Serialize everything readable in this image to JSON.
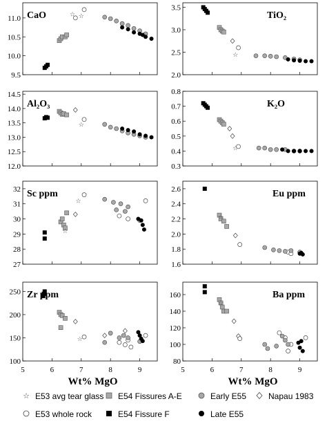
{
  "figure": {
    "xlabel_shared": "Wt% MgO",
    "xticks": [
      "5",
      "6",
      "7",
      "8",
      "9"
    ]
  },
  "legend": [
    {
      "symbol": "star",
      "label": "E53 avg tear glass"
    },
    {
      "symbol": "square-gray",
      "label": "E54 Fissures A-E"
    },
    {
      "symbol": "circle-gray",
      "label": "Early E55"
    },
    {
      "symbol": "diamond-open",
      "label": "Napau 1983"
    },
    {
      "symbol": "circle-open",
      "label": "E53 whole rock"
    },
    {
      "symbol": "square-black",
      "label": "E54 Fissure F"
    },
    {
      "symbol": "circle-black",
      "label": "Late E55"
    }
  ],
  "chart_data": [
    {
      "type": "scatter",
      "title": "CaO",
      "xlim": [
        5,
        9.6
      ],
      "ylim": [
        9.5,
        11.4
      ],
      "yticks": [
        "9.5",
        "10.0",
        "10.5",
        "11.0"
      ],
      "series": [
        {
          "name": "E54 Fissure F",
          "x": [
            5.75,
            5.8,
            5.85
          ],
          "y": [
            9.68,
            9.72,
            9.76
          ]
        },
        {
          "name": "E54 Fissures A-E",
          "x": [
            6.25,
            6.3,
            6.35,
            6.45,
            6.5
          ],
          "y": [
            10.4,
            10.45,
            10.5,
            10.5,
            10.55
          ]
        },
        {
          "name": "E53 avg tear glass",
          "x": [
            6.7,
            7.0
          ],
          "y": [
            11.1,
            11.05
          ]
        },
        {
          "name": "E53 whole rock",
          "x": [
            7.1,
            6.8
          ],
          "y": [
            11.22,
            11.0
          ]
        },
        {
          "name": "Early E55",
          "x": [
            7.8,
            8.0,
            8.2,
            8.4,
            8.6,
            8.8,
            9.0,
            9.2
          ],
          "y": [
            11.02,
            10.98,
            10.92,
            10.85,
            10.8,
            10.72,
            10.66,
            10.58
          ]
        },
        {
          "name": "Late E55",
          "x": [
            8.4,
            8.6,
            8.8,
            9.0,
            9.1,
            9.2,
            9.4
          ],
          "y": [
            10.75,
            10.7,
            10.62,
            10.58,
            10.55,
            10.5,
            10.45
          ]
        }
      ]
    },
    {
      "type": "scatter",
      "title": "TiO₂",
      "xlim": [
        5,
        9.6
      ],
      "ylim": [
        2.0,
        3.6
      ],
      "yticks": [
        "2.0",
        "2.5",
        "3.0",
        "3.5"
      ],
      "series": [
        {
          "name": "E54 Fissure F",
          "x": [
            5.7,
            5.75,
            5.8,
            5.85
          ],
          "y": [
            3.5,
            3.46,
            3.42,
            3.38
          ]
        },
        {
          "name": "E54 Fissures A-E",
          "x": [
            6.25,
            6.3,
            6.35,
            6.4
          ],
          "y": [
            3.05,
            3.0,
            2.97,
            2.95
          ]
        },
        {
          "name": "E53 avg tear glass",
          "x": [
            6.8
          ],
          "y": [
            2.45
          ]
        },
        {
          "name": "E53 whole rock",
          "x": [
            6.9
          ],
          "y": [
            2.6
          ]
        },
        {
          "name": "Napau 1983",
          "x": [
            6.7
          ],
          "y": [
            2.75
          ]
        },
        {
          "name": "Early E55",
          "x": [
            7.5,
            7.8,
            8.0,
            8.2,
            8.5,
            8.8,
            9.0
          ],
          "y": [
            2.42,
            2.42,
            2.41,
            2.4,
            2.38,
            2.35,
            2.33
          ]
        },
        {
          "name": "Late E55",
          "x": [
            8.6,
            8.8,
            9.0,
            9.2,
            9.4
          ],
          "y": [
            2.34,
            2.32,
            2.31,
            2.3,
            2.3
          ]
        }
      ]
    },
    {
      "type": "scatter",
      "title": "Al₂O₃",
      "xlim": [
        5,
        9.6
      ],
      "ylim": [
        12.0,
        14.6
      ],
      "yticks": [
        "12.0",
        "12.5",
        "13.0",
        "13.5",
        "14.0",
        "14.5"
      ],
      "series": [
        {
          "name": "E54 Fissure F",
          "x": [
            5.75,
            5.8,
            5.85
          ],
          "y": [
            13.66,
            13.7,
            13.68
          ]
        },
        {
          "name": "E54 Fissures A-E",
          "x": [
            6.25,
            6.3,
            6.35,
            6.4,
            6.5
          ],
          "y": [
            13.9,
            13.85,
            13.8,
            13.82,
            13.78
          ]
        },
        {
          "name": "E53 avg tear glass",
          "x": [
            7.0
          ],
          "y": [
            13.45
          ]
        },
        {
          "name": "Napau 1983",
          "x": [
            6.8
          ],
          "y": [
            13.95
          ]
        },
        {
          "name": "E53 whole rock",
          "x": [
            7.1
          ],
          "y": [
            13.62
          ]
        },
        {
          "name": "Early E55",
          "x": [
            7.8,
            8.0,
            8.2,
            8.4,
            8.6,
            8.8,
            9.0,
            9.2
          ],
          "y": [
            13.45,
            13.35,
            13.3,
            13.22,
            13.15,
            13.1,
            13.05,
            13.0
          ]
        },
        {
          "name": "Late E55",
          "x": [
            8.4,
            8.6,
            8.8,
            9.0,
            9.2,
            9.4
          ],
          "y": [
            13.3,
            13.25,
            13.2,
            13.1,
            13.05,
            13.0
          ]
        }
      ]
    },
    {
      "type": "scatter",
      "title": "K₂O",
      "xlim": [
        5,
        9.6
      ],
      "ylim": [
        0.3,
        0.8
      ],
      "yticks": [
        "0.3",
        "0.4",
        "0.5",
        "0.6",
        "0.7",
        "0.8"
      ],
      "series": [
        {
          "name": "E54 Fissure F",
          "x": [
            5.7,
            5.75,
            5.8,
            5.85
          ],
          "y": [
            0.72,
            0.71,
            0.7,
            0.69
          ]
        },
        {
          "name": "E54 Fissures A-E",
          "x": [
            6.25,
            6.3,
            6.35,
            6.4
          ],
          "y": [
            0.61,
            0.6,
            0.59,
            0.58
          ]
        },
        {
          "name": "E53 avg tear glass",
          "x": [
            6.8
          ],
          "y": [
            0.42
          ]
        },
        {
          "name": "Napau 1983",
          "x": [
            6.6,
            6.7
          ],
          "y": [
            0.55,
            0.5
          ]
        },
        {
          "name": "E53 whole rock",
          "x": [
            6.9
          ],
          "y": [
            0.43
          ]
        },
        {
          "name": "Early E55",
          "x": [
            7.6,
            7.8,
            8.0,
            8.2,
            8.5,
            8.8,
            9.0
          ],
          "y": [
            0.42,
            0.42,
            0.41,
            0.41,
            0.41,
            0.4,
            0.4
          ]
        },
        {
          "name": "Late E55",
          "x": [
            8.4,
            8.6,
            8.8,
            9.0,
            9.2,
            9.4
          ],
          "y": [
            0.41,
            0.4,
            0.4,
            0.4,
            0.4,
            0.4
          ]
        }
      ]
    },
    {
      "type": "scatter",
      "title": "Sc ppm",
      "xlim": [
        5,
        9.6
      ],
      "ylim": [
        27,
        32.5
      ],
      "yticks": [
        "27",
        "28",
        "29",
        "30",
        "31",
        "32"
      ],
      "series": [
        {
          "name": "E54 Fissure F",
          "x": [
            5.75,
            5.75
          ],
          "y": [
            28.7,
            29.1
          ]
        },
        {
          "name": "E54 Fissures A-E",
          "x": [
            6.3,
            6.35,
            6.4,
            6.45,
            6.5
          ],
          "y": [
            29.8,
            30.0,
            29.6,
            29.4,
            30.4
          ]
        },
        {
          "name": "E53 avg tear glass",
          "x": [
            6.9,
            6.45
          ],
          "y": [
            31.2,
            29.2
          ]
        },
        {
          "name": "Napau 1983",
          "x": [
            6.8
          ],
          "y": [
            30.3
          ]
        },
        {
          "name": "E53 whole rock",
          "x": [
            7.1,
            9.2,
            8.3,
            8.6
          ],
          "y": [
            31.6,
            31.2,
            30.2,
            30.0
          ]
        },
        {
          "name": "Early E55",
          "x": [
            7.8,
            8.1,
            8.2,
            8.35,
            8.5,
            8.6,
            9.0
          ],
          "y": [
            31.3,
            31.1,
            30.6,
            31.0,
            30.5,
            30.8,
            29.9
          ]
        },
        {
          "name": "Late E55",
          "x": [
            8.95,
            9.05,
            9.1,
            9.15
          ],
          "y": [
            30.0,
            29.9,
            29.6,
            29.3
          ]
        }
      ]
    },
    {
      "type": "scatter",
      "title": "Eu ppm",
      "xlim": [
        5,
        9.6
      ],
      "ylim": [
        1.6,
        2.7
      ],
      "yticks": [
        "1.6",
        "1.8",
        "2.0",
        "2.2",
        "2.4",
        "2.6"
      ],
      "series": [
        {
          "name": "E54 Fissure F",
          "x": [
            5.75
          ],
          "y": [
            2.6
          ]
        },
        {
          "name": "E54 Fissures A-E",
          "x": [
            6.25,
            6.3,
            6.4,
            6.5
          ],
          "y": [
            2.25,
            2.2,
            2.17,
            2.1
          ]
        },
        {
          "name": "E53 avg tear glass",
          "x": [
            6.3
          ],
          "y": [
            2.23
          ]
        },
        {
          "name": "Napau 1983",
          "x": [
            6.8
          ],
          "y": [
            1.98
          ]
        },
        {
          "name": "E53 whole rock",
          "x": [
            6.95,
            8.6,
            8.7
          ],
          "y": [
            1.86,
            1.76,
            1.74
          ]
        },
        {
          "name": "Early E55",
          "x": [
            7.8,
            8.1,
            8.3,
            8.5,
            8.7,
            9.0
          ],
          "y": [
            1.82,
            1.79,
            1.78,
            1.77,
            1.78,
            1.76
          ]
        },
        {
          "name": "Late E55",
          "x": [
            9.0,
            9.05,
            9.1
          ],
          "y": [
            1.74,
            1.75,
            1.73
          ]
        }
      ]
    },
    {
      "type": "scatter",
      "title": "Zr ppm",
      "xlim": [
        5,
        9.6
      ],
      "ylim": [
        100,
        270
      ],
      "yticks": [
        "100",
        "150",
        "200",
        "250"
      ],
      "series": [
        {
          "name": "E54 Fissure F",
          "x": [
            5.7,
            5.72,
            5.75
          ],
          "y": [
            240,
            245,
            250
          ]
        },
        {
          "name": "E54 Fissures A-E",
          "x": [
            6.25,
            6.3,
            6.35,
            6.45,
            6.3
          ],
          "y": [
            205,
            200,
            198,
            192,
            172
          ]
        },
        {
          "name": "E53 avg tear glass",
          "x": [
            6.95
          ],
          "y": [
            148
          ]
        },
        {
          "name": "Napau 1983",
          "x": [
            6.8,
            7.8,
            8.5
          ],
          "y": [
            185,
            155,
            165
          ]
        },
        {
          "name": "E53 whole rock",
          "x": [
            7.1,
            8.3,
            8.5,
            8.6,
            8.7,
            9.2
          ],
          "y": [
            152,
            140,
            135,
            145,
            130,
            155
          ]
        },
        {
          "name": "Early E55",
          "x": [
            7.8,
            8.0,
            8.3,
            8.45,
            8.6,
            9.0
          ],
          "y": [
            140,
            160,
            150,
            155,
            150,
            142
          ]
        },
        {
          "name": "Late E55",
          "x": [
            8.95,
            9.0,
            9.05,
            9.1
          ],
          "y": [
            162,
            155,
            148,
            143
          ]
        }
      ]
    },
    {
      "type": "scatter",
      "title": "Ba ppm",
      "xlim": [
        5,
        9.6
      ],
      "ylim": [
        80,
        175
      ],
      "yticks": [
        "80",
        "100",
        "120",
        "140",
        "160"
      ],
      "series": [
        {
          "name": "E54 Fissure F",
          "x": [
            5.75,
            5.75
          ],
          "y": [
            163,
            170
          ]
        },
        {
          "name": "E54 Fissures A-E",
          "x": [
            6.25,
            6.3,
            6.35,
            6.4,
            6.5
          ],
          "y": [
            154,
            150,
            145,
            140,
            140
          ]
        },
        {
          "name": "E53 avg tear glass",
          "x": [
            6.3
          ],
          "y": [
            150
          ]
        },
        {
          "name": "Napau 1983",
          "x": [
            6.75,
            6.9
          ],
          "y": [
            128,
            110
          ]
        },
        {
          "name": "E53 whole rock",
          "x": [
            6.95,
            8.3,
            8.5,
            8.7,
            9.2,
            8.6
          ],
          "y": [
            107,
            114,
            108,
            100,
            108,
            92
          ]
        },
        {
          "name": "Early E55",
          "x": [
            7.8,
            7.9,
            8.2,
            8.4,
            8.5,
            8.6
          ],
          "y": [
            100,
            95,
            98,
            110,
            105,
            100
          ]
        },
        {
          "name": "Late E55",
          "x": [
            8.95,
            9.0,
            9.05,
            9.1
          ],
          "y": [
            102,
            96,
            104,
            92
          ]
        }
      ]
    }
  ]
}
